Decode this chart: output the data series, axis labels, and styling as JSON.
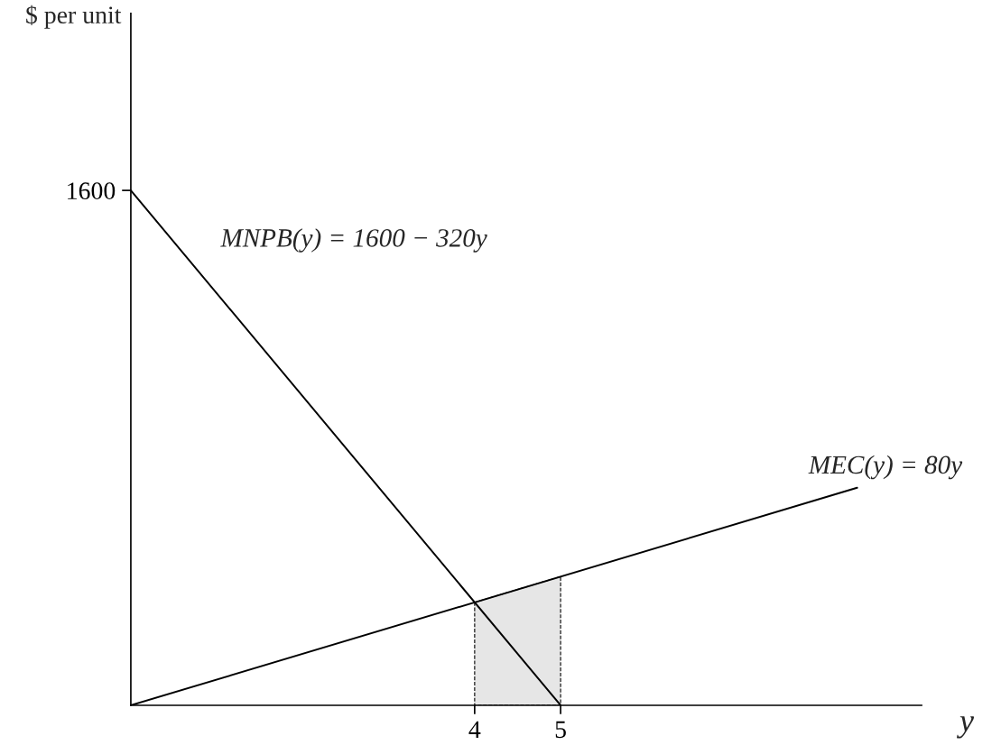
{
  "chart_data": {
    "type": "line",
    "xlabel": "y",
    "ylabel": "$ per unit",
    "series": [
      {
        "x": [
          0,
          5
        ],
        "values": [
          1600,
          0
        ],
        "color": "#000000"
      },
      {
        "x": [
          0,
          8.45
        ],
        "values": [
          0,
          676
        ],
        "color": "#000000"
      },
      {
        "type": "area",
        "x": [
          4,
          5
        ],
        "values": [
          320,
          400
        ],
        "color": "#e6e6e6",
        "line_style": "dashed"
      }
    ],
    "annotations": [
      {
        "text": "MNPB(y) = 1600 − 320y",
        "x": 0.87,
        "y": 1322
      },
      {
        "text": "MEC(y) = 80y",
        "x": 7.71,
        "y": 617
      }
    ],
    "xlim": [
      0,
      9.2
    ],
    "ylim": [
      0,
      2150
    ],
    "xticks": [
      4,
      5
    ],
    "yticks": [
      1600
    ],
    "grid": false,
    "legend": false
  }
}
